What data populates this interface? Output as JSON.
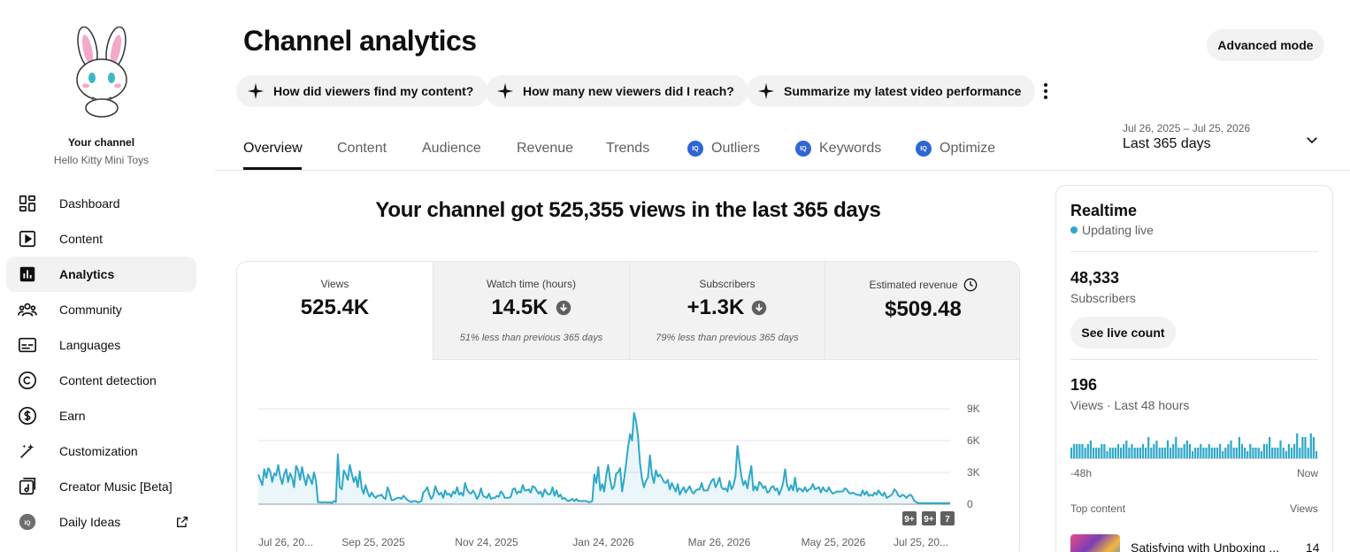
{
  "sidebar": {
    "channel_title": "Your channel",
    "channel_name": "Hello Kitty Mini Toys",
    "items": [
      {
        "label": "Dashboard",
        "icon": "dashboard-icon"
      },
      {
        "label": "Content",
        "icon": "content-icon"
      },
      {
        "label": "Analytics",
        "icon": "analytics-icon",
        "active": true
      },
      {
        "label": "Community",
        "icon": "community-icon"
      },
      {
        "label": "Languages",
        "icon": "languages-icon"
      },
      {
        "label": "Content detection",
        "icon": "copyright-icon"
      },
      {
        "label": "Earn",
        "icon": "dollar-icon"
      },
      {
        "label": "Customization",
        "icon": "magic-wand-icon"
      },
      {
        "label": "Creator Music [Beta]",
        "icon": "music-icon"
      },
      {
        "label": "Daily Ideas",
        "icon": "iq-icon",
        "external": true
      }
    ]
  },
  "header": {
    "title": "Channel analytics",
    "advanced_mode": "Advanced mode",
    "chips": [
      "How did viewers find my content?",
      "How many new viewers did I reach?",
      "Summarize my latest video performance"
    ]
  },
  "tabs": [
    {
      "label": "Overview",
      "active": true
    },
    {
      "label": "Content"
    },
    {
      "label": "Audience"
    },
    {
      "label": "Revenue"
    },
    {
      "label": "Trends"
    },
    {
      "label": "Outliers",
      "badge": "IQ"
    },
    {
      "label": "Keywords",
      "badge": "IQ"
    },
    {
      "label": "Optimize",
      "badge": "IQ"
    }
  ],
  "date_range": {
    "dates": "Jul 26, 2025 – Jul 25, 2026",
    "label": "Last 365 days"
  },
  "summary": {
    "headline": "Your channel got 525,355 views in the last 365 days"
  },
  "metrics": [
    {
      "label": "Views",
      "value": "525.4K",
      "note": "",
      "active": true
    },
    {
      "label": "Watch time (hours)",
      "value": "14.5K",
      "note": "51% less than previous 365 days",
      "trend": "down"
    },
    {
      "label": "Subscribers",
      "value": "+1.3K",
      "note": "79% less than previous 365 days",
      "trend": "down"
    },
    {
      "label": "Estimated revenue",
      "value": "$509.48",
      "note": "",
      "icon": "clock-icon"
    }
  ],
  "chart_data": {
    "type": "area",
    "series": [
      {
        "values": [
          2800,
          2300,
          1800,
          3300,
          2500,
          3400,
          3100,
          2100,
          2900,
          2700,
          3700,
          2600,
          1900,
          2800,
          3300,
          2100,
          2900,
          2500,
          1600,
          3600,
          3200,
          2300,
          3500,
          2500,
          1800,
          2800,
          2400,
          1900,
          3000,
          2200,
          200,
          200,
          150,
          200,
          180,
          150,
          200,
          100,
          300,
          200,
          4700,
          1600,
          1400,
          3200,
          2800,
          2300,
          3700,
          2900,
          2100,
          2600,
          1600,
          3100,
          1500,
          1000,
          1800,
          1100,
          700,
          1100,
          800,
          600,
          800,
          800,
          900,
          600,
          500,
          1600,
          1100,
          400,
          400,
          500,
          600,
          600,
          500,
          800,
          600,
          400,
          300,
          200,
          300,
          300,
          200,
          200,
          300,
          1100,
          1300,
          1600,
          900,
          500,
          800,
          1700,
          1200,
          900,
          1100,
          600,
          1300,
          900,
          1000,
          700,
          1200,
          1000,
          1600,
          900,
          1100,
          800,
          2000,
          1400,
          1100,
          1000,
          1300,
          1000,
          500,
          800,
          1500,
          800,
          700,
          600,
          1000,
          500,
          600,
          600,
          800,
          700,
          1200,
          1000,
          600,
          600,
          600,
          700,
          1400,
          1500,
          1000,
          1200,
          1100,
          1800,
          1300,
          1300,
          1400,
          1100,
          1700,
          1600,
          1300,
          1000,
          1200,
          700,
          1400,
          1100,
          900,
          1000,
          1600,
          800,
          1300,
          700,
          900,
          500,
          600,
          400,
          300,
          400,
          500,
          300,
          500,
          300,
          300,
          300,
          300,
          300,
          200,
          200,
          300,
          2800,
          2000,
          3500,
          1300,
          1900,
          1200,
          2700,
          3700,
          2300,
          1400,
          1700,
          2900,
          3000,
          3400,
          1200,
          2400,
          3800,
          5400,
          6600,
          6000,
          8600,
          7800,
          6400,
          3900,
          2400,
          1600,
          2200,
          2500,
          4600,
          2800,
          2000,
          3200,
          2600,
          2800,
          2500,
          2100,
          2000,
          2300,
          1400,
          2000,
          1600,
          1200,
          1900,
          900,
          1300,
          1600,
          1100,
          1400,
          1700,
          1200,
          1000,
          1300,
          1400,
          1400,
          2000,
          1300,
          1300,
          1300,
          1800,
          2200,
          2400,
          1600,
          2000,
          2500,
          1600,
          1400,
          1500,
          1200,
          2200,
          1400,
          1800,
          2600,
          5500,
          4000,
          2600,
          1800,
          2200,
          1500,
          2600,
          3600,
          1300,
          1700,
          1300,
          2100,
          1900,
          1500,
          1700,
          1100,
          1200,
          1600,
          1700,
          1300,
          1500,
          900,
          1400,
          2000,
          3300,
          1800,
          1300,
          1800,
          1300,
          2500,
          1200,
          1500,
          1400,
          1200,
          1600,
          1200,
          1400,
          1500,
          1900,
          1400,
          1500,
          1600,
          1100,
          1600,
          1300,
          1200,
          1600,
          1200,
          1000,
          1100,
          1200,
          1200,
          1200,
          1200,
          1500,
          1400,
          1100,
          1000,
          1100,
          1000,
          900,
          900,
          800,
          1300,
          900,
          1200,
          800,
          900,
          800,
          1100,
          900,
          1300,
          1000,
          800,
          1100,
          600,
          700,
          800,
          1000,
          1400,
          1200,
          800,
          700,
          900,
          800,
          600,
          800,
          900,
          700,
          300,
          200,
          100,
          100,
          100,
          100,
          100,
          100,
          100,
          100,
          100,
          100,
          100,
          100,
          100,
          100,
          100,
          100,
          100
        ]
      }
    ],
    "x_ticks": [
      "Jul 26, 20...",
      "Sep 25, 2025",
      "Nov 24, 2025",
      "Jan 24, 2026",
      "Mar 26, 2026",
      "May 25, 2026",
      "Jul 25, 20..."
    ],
    "y_ticks": [
      "9K",
      "6K",
      "3K",
      "0"
    ],
    "ylim": [
      0,
      9000
    ],
    "markers": [
      "9+",
      "9+",
      "7"
    ],
    "color": "#2ea8c9"
  },
  "realtime": {
    "title": "Realtime",
    "status": "Updating live",
    "subscribers_value": "48,333",
    "subscribers_label": "Subscribers",
    "live_count_button": "See live count",
    "views_value": "196",
    "views_label": "Views · Last 48 hours",
    "bars": [
      3,
      4,
      4,
      4,
      4,
      3,
      4,
      5,
      3,
      3,
      3,
      4,
      4,
      2,
      3,
      3,
      3,
      4,
      3,
      4,
      5,
      3,
      4,
      3,
      3,
      3,
      4,
      3,
      6,
      3,
      4,
      5,
      3,
      3,
      3,
      5,
      3,
      4,
      6,
      3,
      3,
      4,
      5,
      4,
      2,
      3,
      3,
      4,
      3,
      3,
      4,
      3,
      3,
      3,
      4,
      2,
      3,
      4,
      5,
      3,
      3,
      6,
      4,
      3,
      2,
      4,
      3,
      3,
      3,
      2,
      4,
      4,
      6,
      3,
      3,
      3,
      5,
      3,
      2,
      4,
      3,
      4,
      7,
      3,
      6,
      6,
      3,
      7,
      6,
      2
    ],
    "axis_start": "-48h",
    "axis_end": "Now",
    "top_content_label": "Top content",
    "top_content_views_label": "Views",
    "top_item_title": "Satisfying with Unboxing ...",
    "top_item_views": "14"
  }
}
